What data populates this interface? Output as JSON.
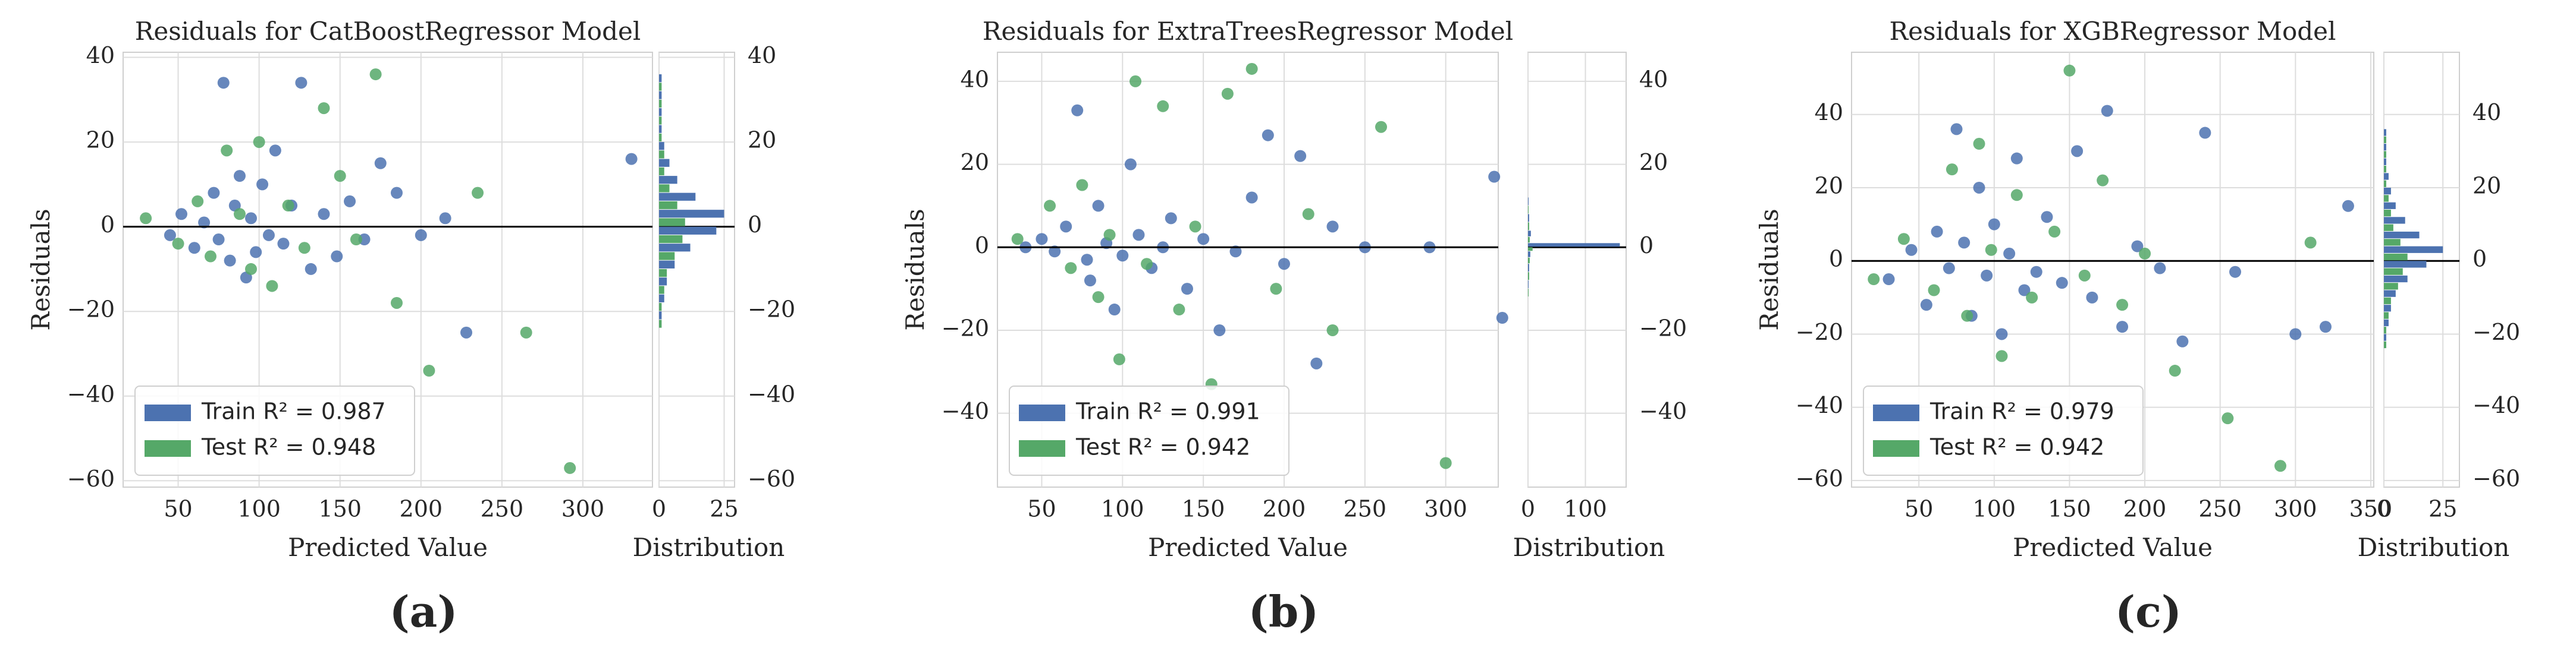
{
  "chart_data": [
    {
      "type": "scatter",
      "title": "Residuals for CatBoostRegressor Model",
      "caption": "(a)",
      "xlabel": "Predicted Value",
      "ylabel": "Residuals",
      "legend": "lower left",
      "grid": true,
      "xlim": [
        16,
        343
      ],
      "xticks": [
        50,
        100,
        150,
        200,
        250,
        300
      ],
      "ylim": [
        -61.5,
        41.2
      ],
      "yticks": [
        {
          "value": -60,
          "label": "−60"
        },
        {
          "value": -40,
          "label": "−40"
        },
        {
          "value": -20,
          "label": "−20"
        },
        0,
        20,
        40
      ],
      "series": [
        {
          "name": "Train R² = 0.987",
          "color": "#4c72b0",
          "x": [
            45,
            52,
            60,
            66,
            72,
            75,
            78,
            82,
            85,
            88,
            92,
            95,
            98,
            102,
            106,
            110,
            115,
            120,
            126,
            132,
            140,
            148,
            156,
            165,
            175,
            185,
            200,
            215,
            228,
            330
          ],
          "values": [
            -2,
            3,
            -5,
            1,
            8,
            -3,
            34,
            -8,
            5,
            12,
            -12,
            2,
            -6,
            10,
            -2,
            18,
            -4,
            5,
            34,
            -10,
            3,
            -7,
            6,
            -3,
            15,
            8,
            -2,
            2,
            -25,
            16
          ]
        },
        {
          "name": "Test R² = 0.948",
          "color": "#55a868",
          "x": [
            30,
            50,
            62,
            70,
            80,
            88,
            95,
            100,
            108,
            118,
            128,
            140,
            150,
            160,
            172,
            185,
            205,
            235,
            265,
            292
          ],
          "values": [
            2,
            -4,
            6,
            -7,
            18,
            3,
            -10,
            20,
            -14,
            5,
            -5,
            28,
            12,
            -3,
            36,
            -18,
            -34,
            8,
            -25,
            -57
          ]
        }
      ],
      "histogram": {
        "xlabel": "Distribution",
        "xlim": [
          0,
          29
        ],
        "xticks": [
          0,
          25
        ],
        "bins": [
          -24,
          -20,
          -16,
          -12,
          -8,
          -4,
          0,
          4,
          8,
          12,
          16,
          20,
          24,
          28,
          32,
          36
        ],
        "series": [
          {
            "values": [
              1,
              2,
              3,
              6,
              12,
              22,
              25,
              14,
              7,
              4,
              2,
              1,
              1,
              1,
              1
            ]
          },
          {
            "values": [
              1,
              1,
              2,
              3,
              6,
              9,
              10,
              7,
              4,
              2,
              2,
              1,
              1,
              1,
              1
            ]
          }
        ]
      }
    },
    {
      "type": "scatter",
      "title": "Residuals for ExtraTreesRegressor Model",
      "caption": "(b)",
      "xlabel": "Predicted Value",
      "ylabel": "Residuals",
      "legend": "lower left",
      "grid": true,
      "xlim": [
        22.6,
        332.5
      ],
      "xticks": [
        50,
        100,
        150,
        200,
        250,
        300
      ],
      "ylim": [
        -57.8,
        47
      ],
      "yticks": [
        {
          "value": -40,
          "label": "−40"
        },
        {
          "value": -20,
          "label": "−20"
        },
        0,
        20,
        40
      ],
      "series": [
        {
          "name": "Train R² = 0.991",
          "color": "#4c72b0",
          "x": [
            40,
            50,
            58,
            65,
            72,
            78,
            80,
            85,
            90,
            95,
            100,
            105,
            110,
            118,
            125,
            130,
            140,
            150,
            160,
            170,
            180,
            190,
            200,
            210,
            220,
            230,
            250,
            290,
            330,
            335
          ],
          "values": [
            0,
            2,
            -1,
            5,
            33,
            -3,
            -8,
            10,
            1,
            -15,
            -2,
            20,
            3,
            -5,
            0,
            7,
            -10,
            2,
            -20,
            -1,
            12,
            27,
            -4,
            22,
            -28,
            5,
            0,
            0,
            17,
            -17
          ]
        },
        {
          "name": "Test R² = 0.942",
          "color": "#55a868",
          "x": [
            35,
            55,
            68,
            75,
            85,
            92,
            98,
            108,
            115,
            125,
            135,
            145,
            155,
            165,
            180,
            195,
            215,
            230,
            260,
            300
          ],
          "values": [
            2,
            10,
            -5,
            15,
            -12,
            3,
            -27,
            40,
            -4,
            34,
            -15,
            5,
            -33,
            37,
            43,
            -10,
            8,
            -20,
            29,
            -52
          ]
        }
      ],
      "histogram": {
        "xlabel": "Distribution",
        "xlim": [
          0,
          171
        ],
        "xticks": [
          0,
          100
        ],
        "bins": [
          -12,
          -8,
          -4,
          -1,
          1,
          4,
          8,
          12
        ],
        "series": [
          {
            "values": [
              1,
              2,
              4,
              160,
              5,
              2,
              1
            ]
          },
          {
            "values": [
              1,
              2,
              3,
              8,
              3,
              2,
              1
            ]
          }
        ]
      }
    },
    {
      "type": "scatter",
      "title": "Residuals for XGBRegressor Model",
      "caption": "(c)",
      "xlabel": "Predicted Value",
      "ylabel": "Residuals",
      "legend": "lower left",
      "grid": true,
      "xlim": [
        5.3,
        352
      ],
      "xticks": [
        50,
        100,
        150,
        200,
        250,
        300,
        350
      ],
      "ylim": [
        -61.8,
        57
      ],
      "yticks": [
        {
          "value": -60,
          "label": "−60"
        },
        {
          "value": -40,
          "label": "−40"
        },
        {
          "value": -20,
          "label": "−20"
        },
        0,
        20,
        40
      ],
      "series": [
        {
          "name": "Train R² = 0.979",
          "color": "#4c72b0",
          "x": [
            30,
            45,
            55,
            62,
            70,
            75,
            80,
            85,
            90,
            95,
            100,
            105,
            110,
            115,
            120,
            128,
            135,
            145,
            155,
            165,
            175,
            185,
            195,
            210,
            225,
            240,
            260,
            300,
            320,
            335
          ],
          "values": [
            -5,
            3,
            -12,
            8,
            -2,
            36,
            5,
            -15,
            20,
            -4,
            10,
            -20,
            2,
            28,
            -8,
            -3,
            12,
            -6,
            30,
            -10,
            41,
            -18,
            4,
            -2,
            -22,
            35,
            -3,
            -20,
            -18,
            15
          ]
        },
        {
          "name": "Test R² = 0.942",
          "color": "#55a868",
          "x": [
            20,
            40,
            60,
            72,
            82,
            90,
            98,
            105,
            115,
            125,
            140,
            150,
            160,
            172,
            185,
            200,
            220,
            255,
            290,
            310
          ],
          "values": [
            -5,
            6,
            -8,
            25,
            -15,
            32,
            3,
            -26,
            18,
            -10,
            8,
            52,
            -4,
            22,
            -12,
            2,
            -30,
            -43,
            -56,
            5
          ]
        }
      ],
      "histogram": {
        "xlabel": "Distribution",
        "xlim": [
          0,
          32
        ],
        "xticks": [
          0,
          25
        ],
        "bins": [
          -24,
          -20,
          -16,
          -12,
          -8,
          -4,
          0,
          4,
          8,
          12,
          16,
          20,
          24,
          28,
          32,
          36
        ],
        "series": [
          {
            "values": [
              1,
              2,
              3,
              5,
              10,
              18,
              25,
              15,
              9,
              5,
              3,
              2,
              1,
              1,
              1
            ]
          },
          {
            "values": [
              1,
              1,
              2,
              3,
              6,
              8,
              10,
              7,
              4,
              3,
              2,
              1,
              1,
              1,
              1
            ]
          }
        ]
      }
    }
  ]
}
